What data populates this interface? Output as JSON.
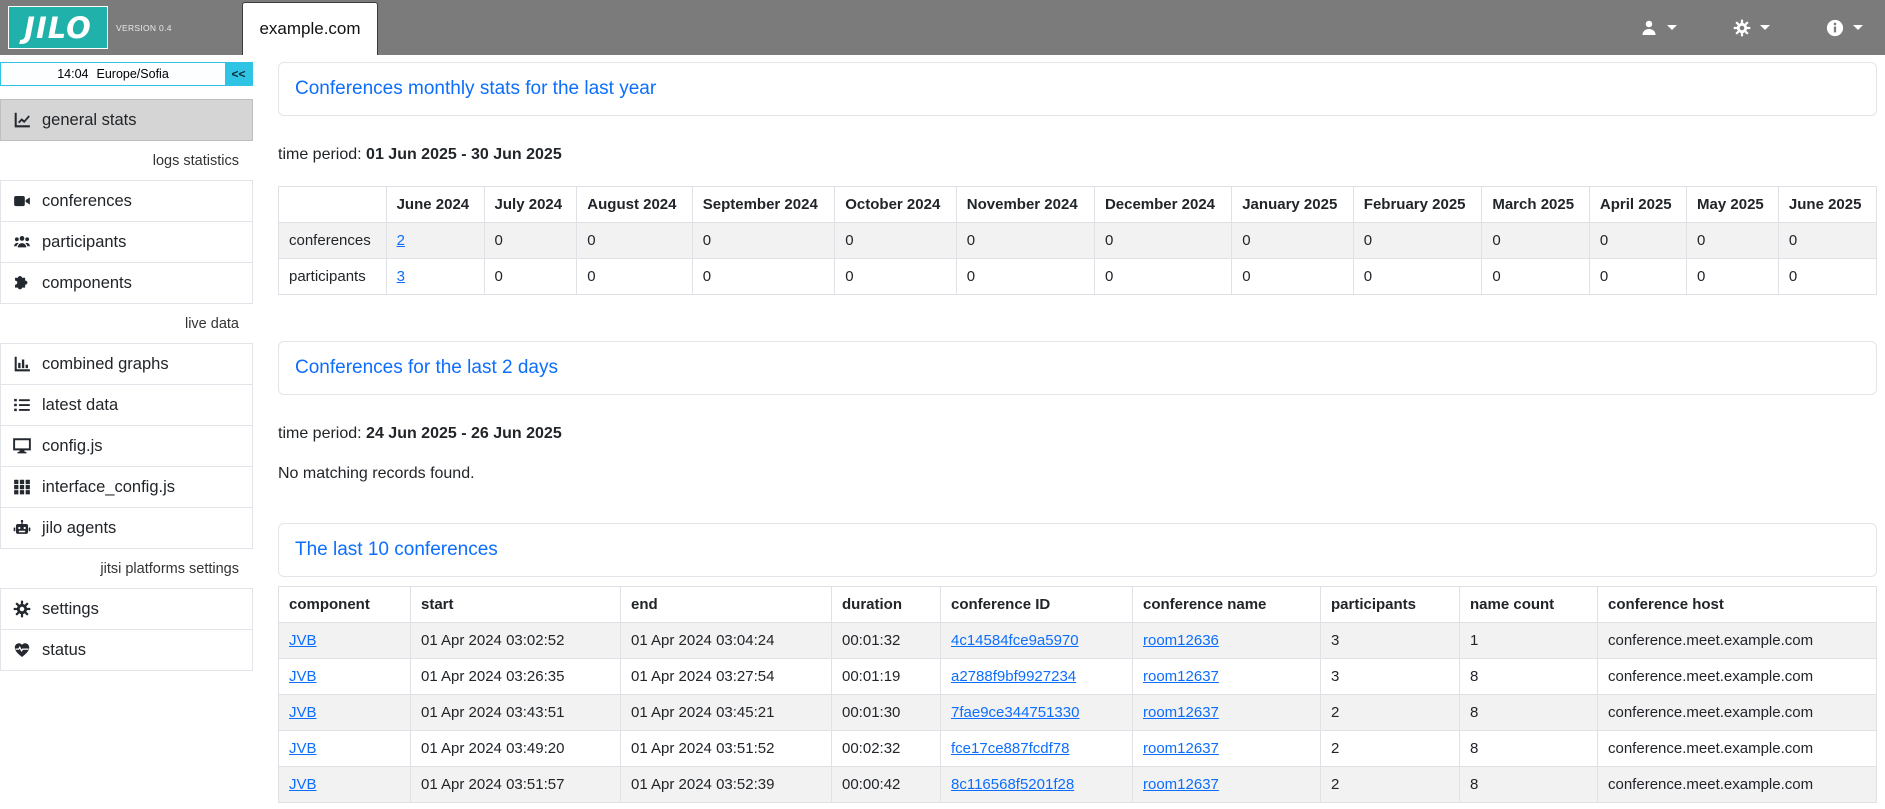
{
  "header": {
    "logo": "JILO",
    "version": "VERSION 0.4",
    "tab": "example.com",
    "menus": [
      {
        "icon": "person-icon"
      },
      {
        "icon": "gear-icon"
      },
      {
        "icon": "info-icon"
      }
    ]
  },
  "sidebar": {
    "clock": {
      "time": "14:04",
      "timezone": "Europe/Sofia",
      "collapse": "<<"
    },
    "items": [
      {
        "type": "item",
        "icon": "chart-line-icon",
        "label": "general stats",
        "selected": true
      },
      {
        "type": "label",
        "label": "logs statistics"
      },
      {
        "type": "item",
        "icon": "video-camera-icon",
        "label": "conferences"
      },
      {
        "type": "item",
        "icon": "users-icon",
        "label": "participants"
      },
      {
        "type": "item",
        "icon": "puzzle-icon",
        "label": "components"
      },
      {
        "type": "label",
        "label": "live data"
      },
      {
        "type": "item",
        "icon": "chart-column-icon",
        "label": "combined graphs"
      },
      {
        "type": "item",
        "icon": "list-icon",
        "label": "latest data"
      },
      {
        "type": "item",
        "icon": "display-icon",
        "label": "config.js"
      },
      {
        "type": "item",
        "icon": "grid-icon",
        "label": "interface_config.js"
      },
      {
        "type": "item",
        "icon": "robot-icon",
        "label": "jilo agents"
      },
      {
        "type": "label",
        "label": "jitsi platforms settings"
      },
      {
        "type": "item",
        "icon": "gear-icon",
        "label": "settings"
      },
      {
        "type": "item",
        "icon": "heart-pulse-icon",
        "label": "status"
      }
    ]
  },
  "labels": {
    "time_period": "time period:",
    "no_records": "No matching records found."
  },
  "sections": {
    "monthly": {
      "title": "Conferences monthly stats for the last year",
      "period": "01 Jun 2025 - 30 Jun 2025"
    },
    "last2days": {
      "title": "Conferences for the last 2 days",
      "period": "24 Jun 2025 - 26 Jun 2025"
    },
    "last10": {
      "title": "The last 10 conferences"
    }
  },
  "monthly_table": {
    "columns": [
      "",
      "June 2024",
      "July 2024",
      "August 2024",
      "September 2024",
      "October 2024",
      "November 2024",
      "December 2024",
      "January 2025",
      "February 2025",
      "March 2025",
      "April 2025",
      "May 2025",
      "June 2025"
    ],
    "rows": [
      {
        "label": "conferences",
        "values": [
          "2",
          "0",
          "0",
          "0",
          "0",
          "0",
          "0",
          "0",
          "0",
          "0",
          "0",
          "0",
          "0"
        ],
        "link_indices": [
          0
        ]
      },
      {
        "label": "participants",
        "values": [
          "3",
          "0",
          "0",
          "0",
          "0",
          "0",
          "0",
          "0",
          "0",
          "0",
          "0",
          "0",
          "0"
        ],
        "link_indices": [
          0
        ]
      }
    ]
  },
  "last10_table": {
    "columns": [
      "component",
      "start",
      "end",
      "duration",
      "conference ID",
      "conference name",
      "participants",
      "name count",
      "conference host"
    ],
    "link_columns": [
      0,
      4,
      5
    ],
    "rows": [
      [
        "JVB",
        "01 Apr 2024 03:02:52",
        "01 Apr 2024 03:04:24",
        "00:01:32",
        "4c14584fce9a5970",
        "room12636",
        "3",
        "1",
        "conference.meet.example.com"
      ],
      [
        "JVB",
        "01 Apr 2024 03:26:35",
        "01 Apr 2024 03:27:54",
        "00:01:19",
        "a2788f9bf9927234",
        "room12637",
        "3",
        "8",
        "conference.meet.example.com"
      ],
      [
        "JVB",
        "01 Apr 2024 03:43:51",
        "01 Apr 2024 03:45:21",
        "00:01:30",
        "7fae9ce344751330",
        "room12637",
        "2",
        "8",
        "conference.meet.example.com"
      ],
      [
        "JVB",
        "01 Apr 2024 03:49:20",
        "01 Apr 2024 03:51:52",
        "00:02:32",
        "fce17ce887fcdf78",
        "room12637",
        "2",
        "8",
        "conference.meet.example.com"
      ],
      [
        "JVB",
        "01 Apr 2024 03:51:57",
        "01 Apr 2024 03:52:39",
        "00:00:42",
        "8c116568f5201f28",
        "room12637",
        "2",
        "8",
        "conference.meet.example.com"
      ]
    ]
  },
  "colors": {
    "topbar": "#7b7b7b",
    "teal": "#20b2aa",
    "cyan": "#2fc4e4",
    "link": "#0d6efd",
    "stripe": "#f2f2f2",
    "border": "#dee2e6"
  }
}
